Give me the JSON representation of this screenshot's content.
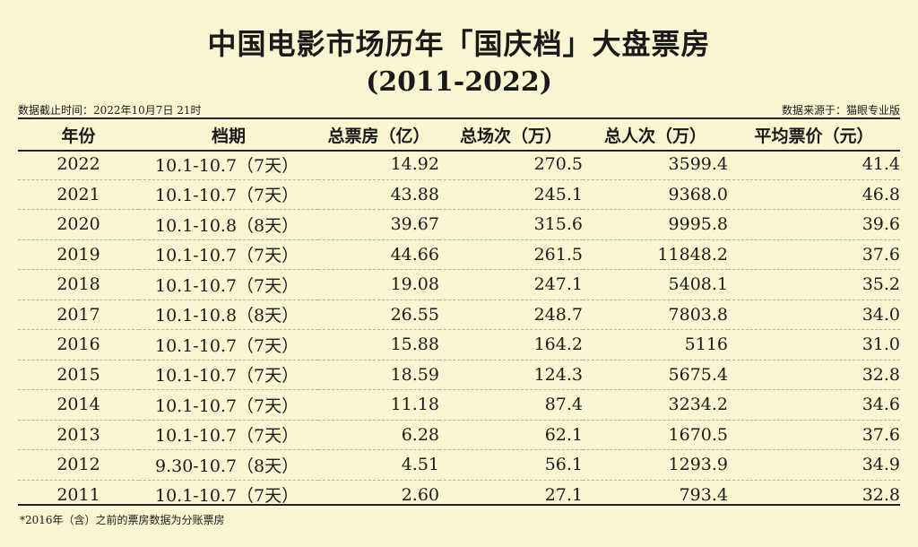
{
  "title": "中国电影市场历年「国庆档」大盘票房",
  "subtitle": "(2011-2022)",
  "meta": {
    "cutoff": "数据截止时间：2022年10月7日 21时",
    "source": "数据来源于：猫眼专业版"
  },
  "table": {
    "headers": [
      "年份",
      "档期",
      "总票房（亿）",
      "总场次（万）",
      "总人次（万）",
      "平均票价（元）"
    ],
    "rows": [
      [
        "2022",
        "10.1-10.7（7天）",
        "14.92",
        "270.5",
        "3599.4",
        "41.4"
      ],
      [
        "2021",
        "10.1-10.7（7天）",
        "43.88",
        "245.1",
        "9368.0",
        "46.8"
      ],
      [
        "2020",
        "10.1-10.8（8天）",
        "39.67",
        "315.6",
        "9995.8",
        "39.6"
      ],
      [
        "2019",
        "10.1-10.7（7天）",
        "44.66",
        "261.5",
        "11848.2",
        "37.6"
      ],
      [
        "2018",
        "10.1-10.7（7天）",
        "19.08",
        "247.1",
        "5408.1",
        "35.2"
      ],
      [
        "2017",
        "10.1-10.8（8天）",
        "26.55",
        "248.7",
        "7803.8",
        "34.0"
      ],
      [
        "2016",
        "10.1-10.7（7天）",
        "15.88",
        "164.2",
        "5116",
        "31.0"
      ],
      [
        "2015",
        "10.1-10.7（7天）",
        "18.59",
        "124.3",
        "5675.4",
        "32.8"
      ],
      [
        "2014",
        "10.1-10.7（7天）",
        "11.18",
        "87.4",
        "3234.2",
        "34.6"
      ],
      [
        "2013",
        "10.1-10.7（7天）",
        "6.28",
        "62.1",
        "1670.5",
        "37.6"
      ],
      [
        "2012",
        "9.30-10.7（8天）",
        "4.51",
        "56.1",
        "1293.9",
        "34.9"
      ],
      [
        "2011",
        "10.1-10.7（7天）",
        "2.60",
        "27.1",
        "793.4",
        "32.8"
      ]
    ]
  },
  "footnote": "*2016年（含）之前的票房数据为分账票房"
}
